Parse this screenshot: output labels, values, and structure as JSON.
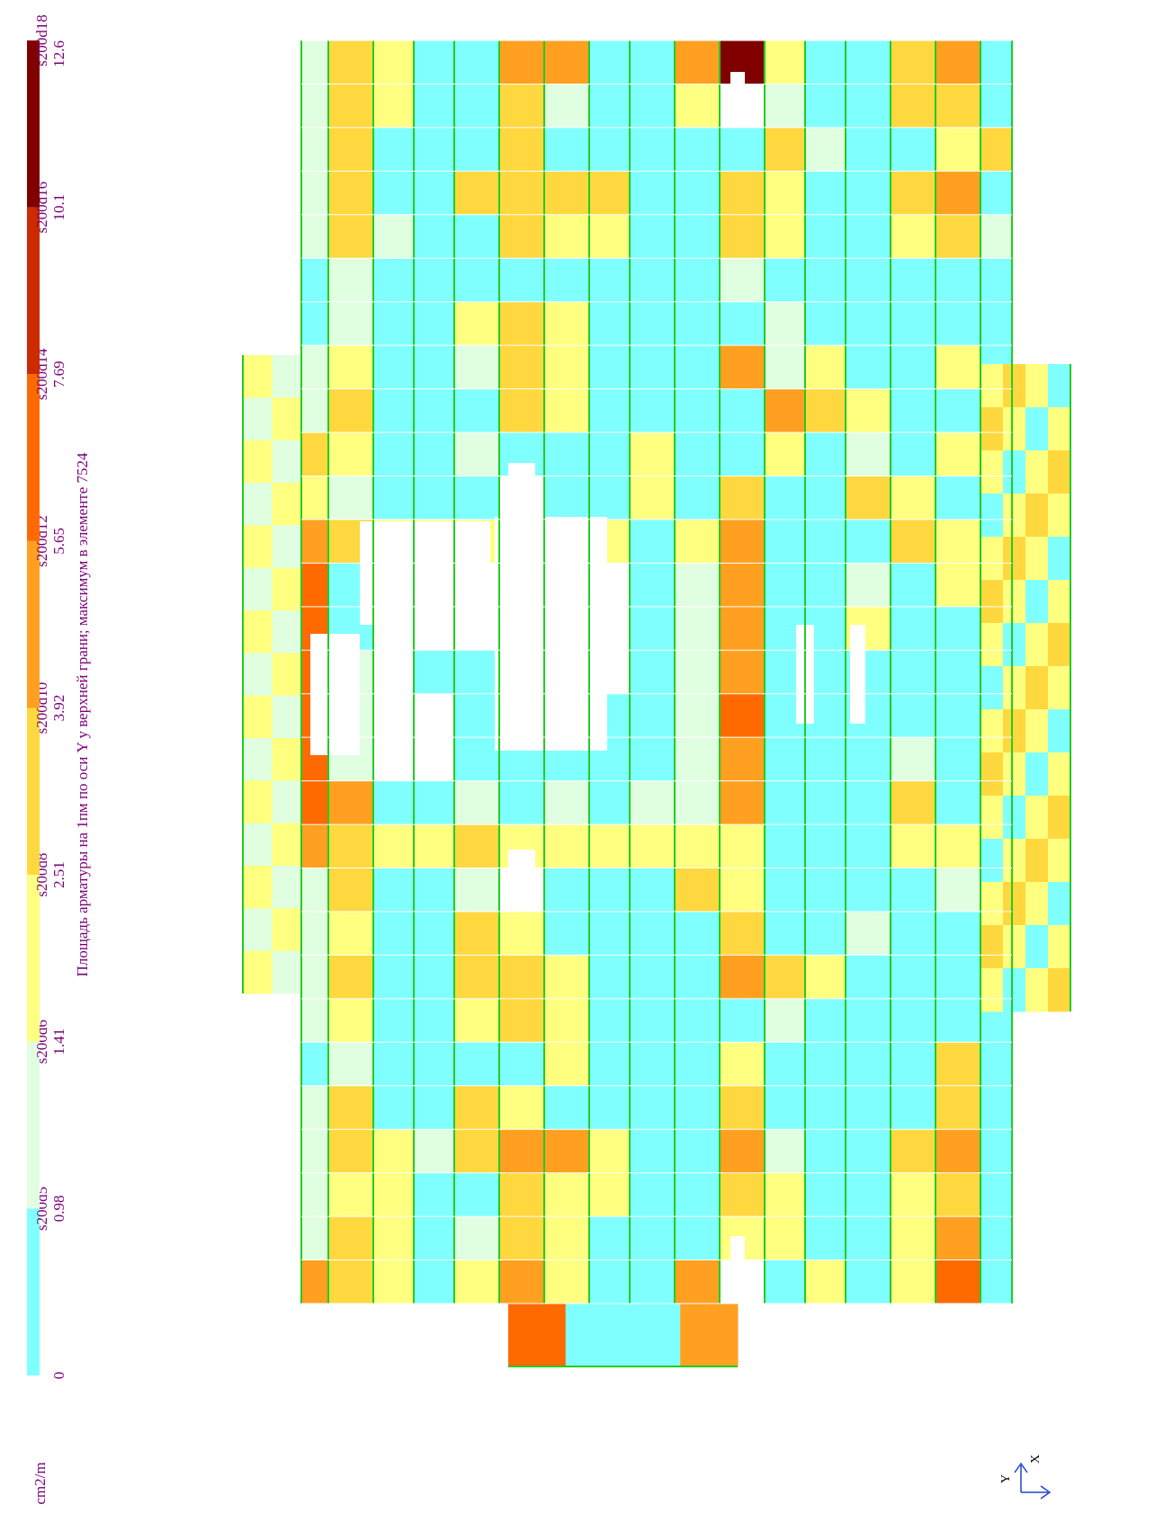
{
  "legend": {
    "title": "Площадь арматуры на 1пм по оси Y у верхней грани; максимум в элементе 7524",
    "unit": "cm2/m",
    "levels": [
      0,
      0.98,
      1.41,
      2.51,
      3.92,
      5.65,
      7.69,
      10.1,
      12.6
    ],
    "bands": [
      {
        "color": "#80ffff",
        "rebar": "s200d5"
      },
      {
        "color": "#e0ffe0",
        "rebar": "s200d6"
      },
      {
        "color": "#ffff80",
        "rebar": "s200d8"
      },
      {
        "color": "#ffd840",
        "rebar": "s200d10"
      },
      {
        "color": "#ffa020",
        "rebar": "s200d12"
      },
      {
        "color": "#ff6a00",
        "rebar": "s200d14"
      },
      {
        "color": "#cc2a00",
        "rebar": "s200d16"
      },
      {
        "color": "#800000",
        "rebar": "s200d18"
      }
    ]
  },
  "axes": {
    "x": "X",
    "y": "Y"
  }
}
